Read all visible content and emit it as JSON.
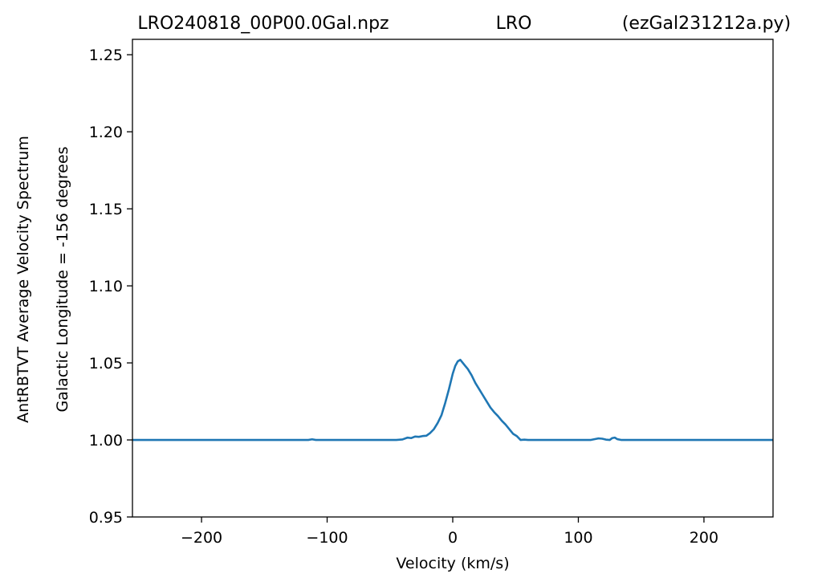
{
  "chart_data": {
    "type": "line",
    "title_parts": [
      "LRO240818_00P00.0Gal.npz",
      "LRO",
      "(ezGal231212a.py)"
    ],
    "xlabel": "Velocity (km/s)",
    "ylabel_lines": [
      "AntRBTVT Average Velocity Spectrum",
      "Galactic Longitude = -156 degrees"
    ],
    "xlim": [
      -255,
      255
    ],
    "ylim": [
      0.95,
      1.26
    ],
    "xticks": [
      -200,
      -100,
      0,
      100,
      200
    ],
    "xtick_labels": [
      "−200",
      "−100",
      "0",
      "100",
      "200"
    ],
    "yticks": [
      0.95,
      1.0,
      1.05,
      1.1,
      1.15,
      1.2,
      1.25
    ],
    "ytick_labels": [
      "0.95",
      "1.00",
      "1.05",
      "1.10",
      "1.15",
      "1.20",
      "1.25"
    ],
    "grid": false,
    "line_color": "#1f77b4",
    "series": [
      {
        "x": [
          -255,
          -115,
          -112,
          -109,
          -45,
          -40,
          -36,
          -33,
          -30,
          -27,
          -24,
          -21,
          -18,
          -15,
          -12,
          -9,
          -6,
          -3,
          0,
          2,
          4,
          6,
          8,
          10,
          12,
          15,
          18,
          21,
          24,
          27,
          30,
          33,
          36,
          39,
          42,
          45,
          48,
          51,
          54,
          57,
          60,
          63,
          66,
          69,
          72,
          90,
          110,
          116,
          119,
          122,
          125,
          127,
          129,
          131,
          134,
          255
        ],
        "y": [
          1.0,
          1.0,
          1.0004,
          1.0,
          1.0,
          1.0003,
          1.0015,
          1.0012,
          1.0022,
          1.002,
          1.0025,
          1.0027,
          1.0045,
          1.007,
          1.011,
          1.016,
          1.024,
          1.033,
          1.043,
          1.048,
          1.051,
          1.052,
          1.05,
          1.048,
          1.046,
          1.042,
          1.037,
          1.033,
          1.029,
          1.025,
          1.021,
          1.018,
          1.0155,
          1.0125,
          1.01,
          1.007,
          1.004,
          1.0025,
          1.0,
          1.0002,
          1.0,
          1.0,
          1.0,
          1.0,
          1.0,
          1.0,
          1.0,
          1.001,
          1.0008,
          1.0002,
          1.0,
          1.0012,
          1.0015,
          1.0005,
          1.0,
          1.0
        ]
      }
    ]
  }
}
